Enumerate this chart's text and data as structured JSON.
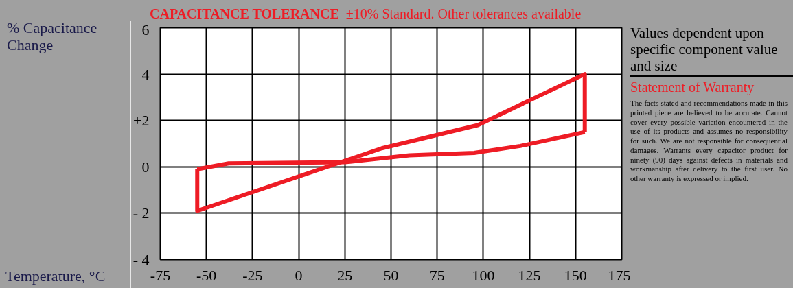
{
  "chart_data": {
    "type": "line",
    "title": "CAPACITANCE TOLERANCE",
    "subtitle": "±10% Standard. Other tolerances available",
    "ylabel": "% Capacitance Change",
    "xlabel": "Temperature, °C",
    "annotations": [
      "Values dependent upon specific component value and size",
      "Statement of Warranty",
      "The facts stated and recommendations made in this printed piece are believed to be accurate. Cannot cover every possible variation encountered in the use of its products and assumes no responsibility for such. We are not responsible for consequential damages. Warrants every capacitor product for ninety (90) days against defects in materials and workmanship after delivery to the first user. No other warranty is expressed or implied."
    ],
    "series": [
      {
        "color": "#ee1c25",
        "x": [
          -55,
          -55,
          45,
          97,
          118,
          155,
          155
        ],
        "values": [
          -0.1,
          -1.9,
          0.8,
          1.8,
          2.6,
          4.0,
          1.5
        ]
      },
      {
        "color": "#ee1c25",
        "x": [
          -55,
          -38,
          25,
          60,
          95,
          120,
          155
        ],
        "values": [
          -0.1,
          0.15,
          0.2,
          0.5,
          0.6,
          0.9,
          1.5
        ]
      }
    ],
    "xlim": [
      -75,
      175
    ],
    "ylim": [
      -4,
      6
    ],
    "xticks": [
      -75,
      -50,
      -25,
      0,
      25,
      50,
      75,
      100,
      125,
      150,
      175
    ],
    "yticks": [
      {
        "value": -4,
        "label": "- 4"
      },
      {
        "value": -2,
        "label": "- 2"
      },
      0,
      {
        "value": 2,
        "label": "+2"
      },
      4,
      6
    ],
    "grid": true,
    "marker": "none",
    "line_style": "solid"
  }
}
